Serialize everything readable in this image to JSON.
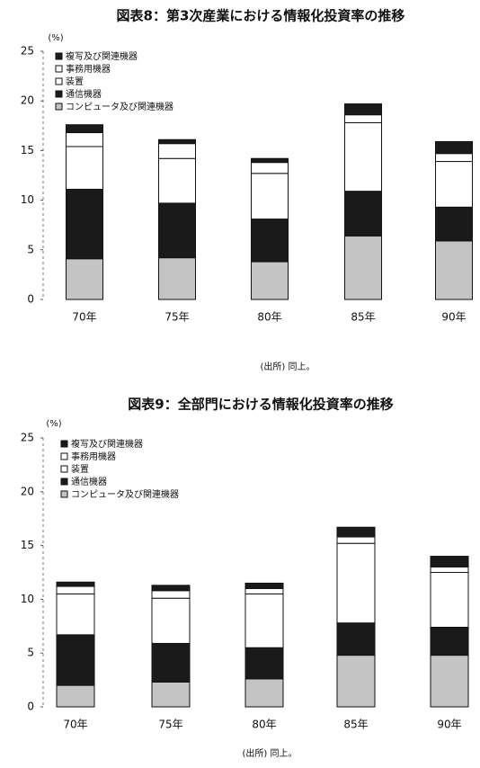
{
  "chart_data": [
    {
      "type": "bar",
      "stacked": true,
      "title": "図表8：第3次産業における情報化投資率の推移",
      "ylabel": "(%)",
      "categories": [
        "70年",
        "75年",
        "80年",
        "85年",
        "90年"
      ],
      "series": [
        {
          "name": "コンピュータ及び関連機器",
          "color": "#c4c4c4",
          "values": [
            4.1,
            4.2,
            3.8,
            6.4,
            5.9
          ]
        },
        {
          "name": "通信機器",
          "color": "#1a1a1a",
          "values": [
            7.0,
            5.5,
            4.3,
            4.5,
            3.4
          ]
        },
        {
          "name": "装置",
          "color": "#ffffff",
          "values": [
            4.3,
            4.5,
            4.6,
            6.9,
            4.6
          ]
        },
        {
          "name": "事務用機器",
          "color": "#ffffff",
          "values": [
            1.4,
            1.5,
            1.1,
            0.8,
            0.8
          ]
        },
        {
          "name": "複写及び関連機器",
          "color": "#1a1a1a",
          "values": [
            0.8,
            0.4,
            0.4,
            1.1,
            1.2
          ]
        }
      ],
      "ylim": [
        0,
        25
      ],
      "yticks": [
        0,
        5,
        10,
        15,
        20,
        25
      ],
      "source": "(出所) 同上。"
    },
    {
      "type": "bar",
      "stacked": true,
      "title": "図表9：全部門における情報化投資率の推移",
      "ylabel": "(%)",
      "categories": [
        "70年",
        "75年",
        "80年",
        "85年",
        "90年"
      ],
      "series": [
        {
          "name": "コンピュータ及び関連機器",
          "color": "#c4c4c4",
          "values": [
            2.0,
            2.3,
            2.6,
            4.8,
            4.8
          ]
        },
        {
          "name": "通信機器",
          "color": "#1a1a1a",
          "values": [
            4.7,
            3.6,
            2.9,
            3.0,
            2.6
          ]
        },
        {
          "name": "装置",
          "color": "#ffffff",
          "values": [
            3.8,
            4.2,
            5.0,
            7.4,
            5.1
          ]
        },
        {
          "name": "事務用機器",
          "color": "#ffffff",
          "values": [
            0.7,
            0.7,
            0.5,
            0.6,
            0.5
          ]
        },
        {
          "name": "複写及び関連機器",
          "color": "#1a1a1a",
          "values": [
            0.4,
            0.5,
            0.5,
            0.9,
            1.0
          ]
        }
      ],
      "ylim": [
        0,
        25
      ],
      "yticks": [
        0,
        5,
        10,
        15,
        20,
        25
      ],
      "source": "(出所) 同上。"
    }
  ]
}
